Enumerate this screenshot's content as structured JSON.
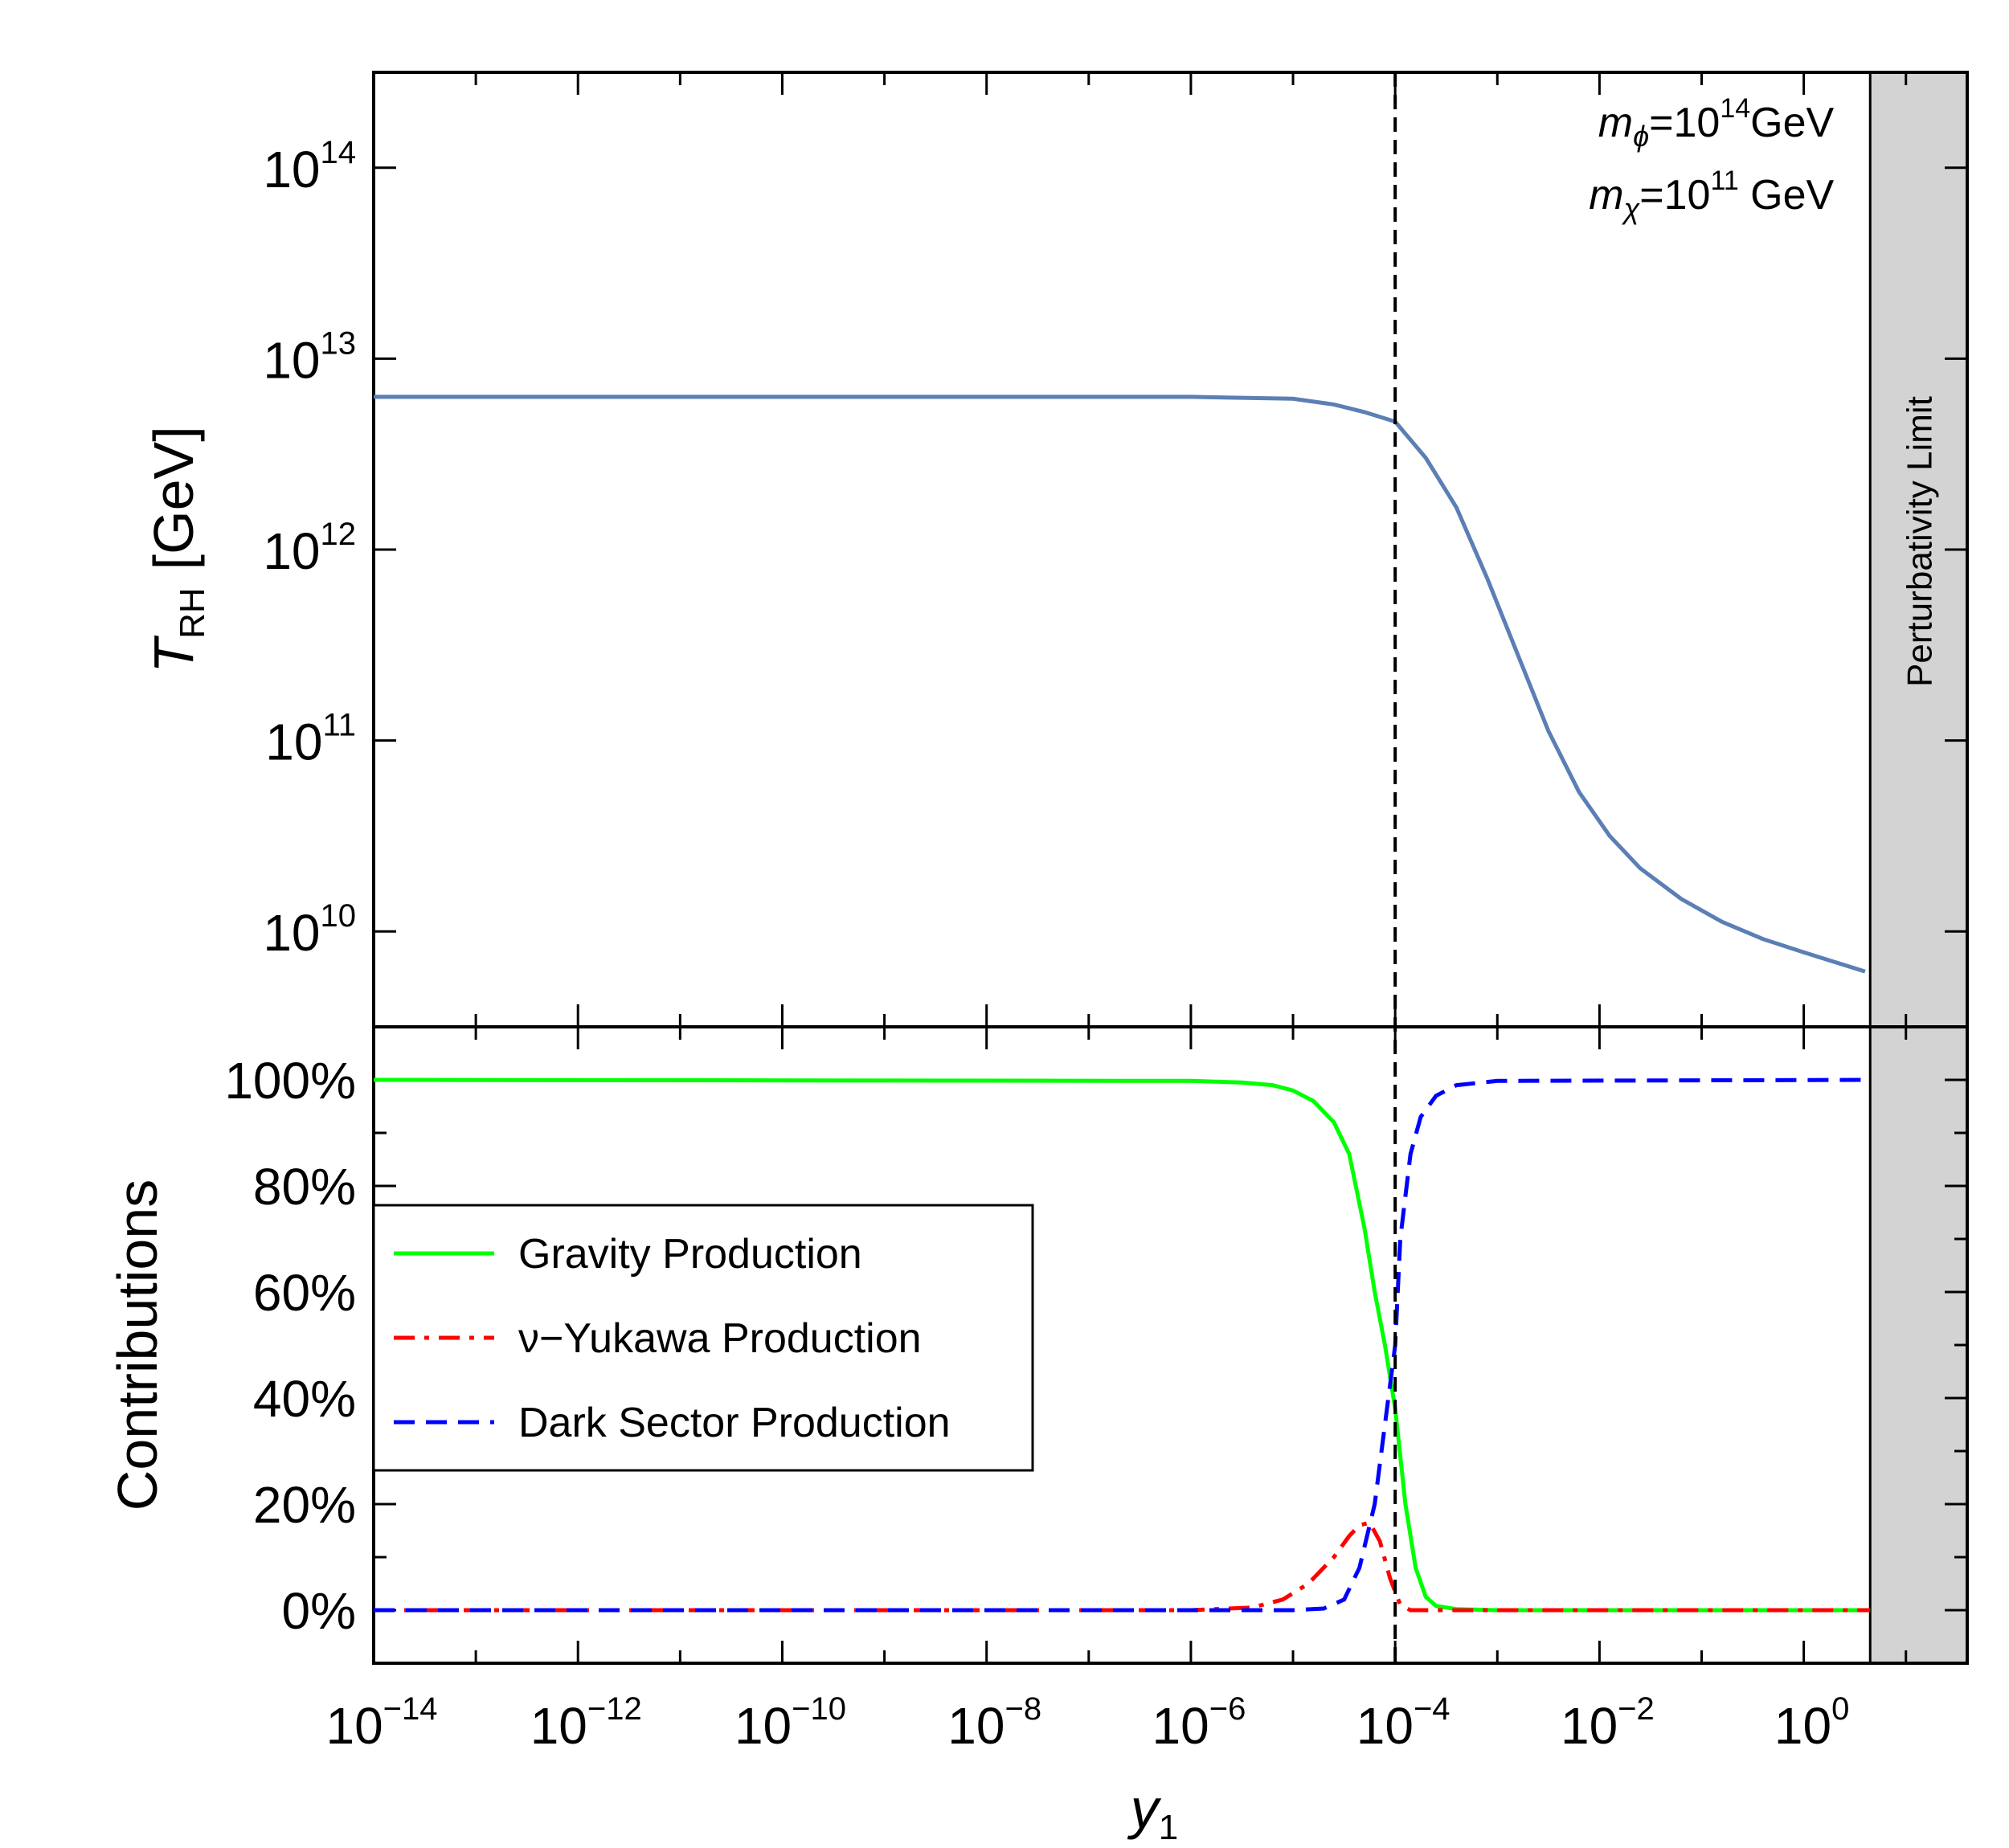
{
  "chart_data": [
    {
      "id": "top",
      "type": "line",
      "xscale": "log10",
      "yscale": "log10",
      "xlim_log10": [
        -14,
        1.6
      ],
      "ylim_log10": [
        9.5,
        14.5
      ],
      "ylabel_main": "T",
      "ylabel_sub": "RH",
      "ylabel_unit": "[GeV]",
      "yticks": [
        {
          "exp": 10,
          "base": "10",
          "sup": "10"
        },
        {
          "exp": 11,
          "base": "10",
          "sup": "11"
        },
        {
          "exp": 12,
          "base": "10",
          "sup": "12"
        },
        {
          "exp": 13,
          "base": "10",
          "sup": "13"
        },
        {
          "exp": 14,
          "base": "10",
          "sup": "14"
        }
      ],
      "annotations": {
        "line1": {
          "sym": "m",
          "sub": "ϕ",
          "eq": "=10",
          "sup": "14",
          "unit": "GeV"
        },
        "line2": {
          "sym": "m",
          "sub": "χ",
          "eq": "=10",
          "sup": "11",
          "unit": " GeV"
        }
      },
      "series": [
        {
          "name": "T_RH",
          "color": "#5b7fb5",
          "style": "solid",
          "points_log10": [
            [
              -14,
              12.8
            ],
            [
              -6,
              12.8
            ],
            [
              -5,
              12.79
            ],
            [
              -4.6,
              12.76
            ],
            [
              -4.3,
              12.72
            ],
            [
              -4.0,
              12.67
            ],
            [
              -3.7,
              12.48
            ],
            [
              -3.4,
              12.22
            ],
            [
              -3.1,
              11.85
            ],
            [
              -2.8,
              11.45
            ],
            [
              -2.5,
              11.05
            ],
            [
              -2.2,
              10.73
            ],
            [
              -1.9,
              10.5
            ],
            [
              -1.6,
              10.33
            ],
            [
              -1.2,
              10.17
            ],
            [
              -0.8,
              10.05
            ],
            [
              -0.4,
              9.96
            ],
            [
              0.0,
              9.89
            ],
            [
              0.3,
              9.84
            ],
            [
              0.6,
              9.79
            ]
          ]
        }
      ],
      "vline_log10": -4,
      "perturbativity_limit": {
        "from_log10": 0.65,
        "label": "Perturbativity Limit",
        "color": "#d3d3d3"
      }
    },
    {
      "id": "bottom",
      "type": "line",
      "xscale": "log10",
      "yscale": "linear",
      "xlim_log10": [
        -14,
        1.6
      ],
      "ylim": [
        -10,
        110
      ],
      "ylabel": "Contributions",
      "xlabel_main": "y",
      "xlabel_sub": "1",
      "yticks": [
        {
          "value": 0,
          "label": "0%"
        },
        {
          "value": 20,
          "label": "20%"
        },
        {
          "value": 40,
          "label": "40%"
        },
        {
          "value": 60,
          "label": "60%"
        },
        {
          "value": 80,
          "label": "80%"
        },
        {
          "value": 100,
          "label": "100%"
        }
      ],
      "xticks": [
        {
          "value": -14,
          "base": "10",
          "sup": "−14"
        },
        {
          "value": -12,
          "base": "10",
          "sup": "−12"
        },
        {
          "value": -10,
          "base": "10",
          "sup": "−10"
        },
        {
          "value": -8,
          "base": "10",
          "sup": "−8"
        },
        {
          "value": -6,
          "base": "10",
          "sup": "−6"
        },
        {
          "value": -4,
          "base": "10",
          "sup": "−4"
        },
        {
          "value": -2,
          "base": "10",
          "sup": "−2"
        },
        {
          "value": 0,
          "base": "10",
          "sup": "0"
        }
      ],
      "series": [
        {
          "name": "Gravity Production",
          "color": "#00ff00",
          "style": "solid",
          "points": [
            [
              -14,
              100
            ],
            [
              -6,
              99.8
            ],
            [
              -5.5,
              99.5
            ],
            [
              -5.2,
              99
            ],
            [
              -5.0,
              98
            ],
            [
              -4.8,
              96
            ],
            [
              -4.6,
              92
            ],
            [
              -4.45,
              86
            ],
            [
              -4.3,
              72
            ],
            [
              -4.2,
              60
            ],
            [
              -4.1,
              50
            ],
            [
              -4.0,
              38
            ],
            [
              -3.9,
              20
            ],
            [
              -3.8,
              8
            ],
            [
              -3.7,
              2.5
            ],
            [
              -3.6,
              0.8
            ],
            [
              -3.4,
              0.2
            ],
            [
              -3.0,
              0
            ],
            [
              0.65,
              0
            ]
          ]
        },
        {
          "name": "ν−Yukawa Production",
          "color": "#ff0000",
          "style": "dashdot",
          "points": [
            [
              -14,
              0
            ],
            [
              -6,
              0
            ],
            [
              -5.4,
              0.5
            ],
            [
              -5.1,
              2
            ],
            [
              -4.85,
              5
            ],
            [
              -4.6,
              10
            ],
            [
              -4.45,
              14
            ],
            [
              -4.35,
              16
            ],
            [
              -4.25,
              16.5
            ],
            [
              -4.15,
              13
            ],
            [
              -4.05,
              6
            ],
            [
              -3.95,
              1
            ],
            [
              -3.85,
              0
            ],
            [
              0.65,
              0
            ]
          ]
        },
        {
          "name": "Dark Sector Production",
          "color": "#0000ff",
          "style": "dashed",
          "points": [
            [
              -14,
              0
            ],
            [
              -5.0,
              0
            ],
            [
              -4.7,
              0.3
            ],
            [
              -4.5,
              2
            ],
            [
              -4.35,
              8
            ],
            [
              -4.2,
              20
            ],
            [
              -4.1,
              35
            ],
            [
              -4.0,
              50
            ],
            [
              -3.95,
              70
            ],
            [
              -3.85,
              86
            ],
            [
              -3.75,
              93
            ],
            [
              -3.6,
              97
            ],
            [
              -3.4,
              99
            ],
            [
              -3.0,
              99.8
            ],
            [
              0.65,
              100
            ]
          ]
        }
      ],
      "vline_log10": -4
    }
  ]
}
